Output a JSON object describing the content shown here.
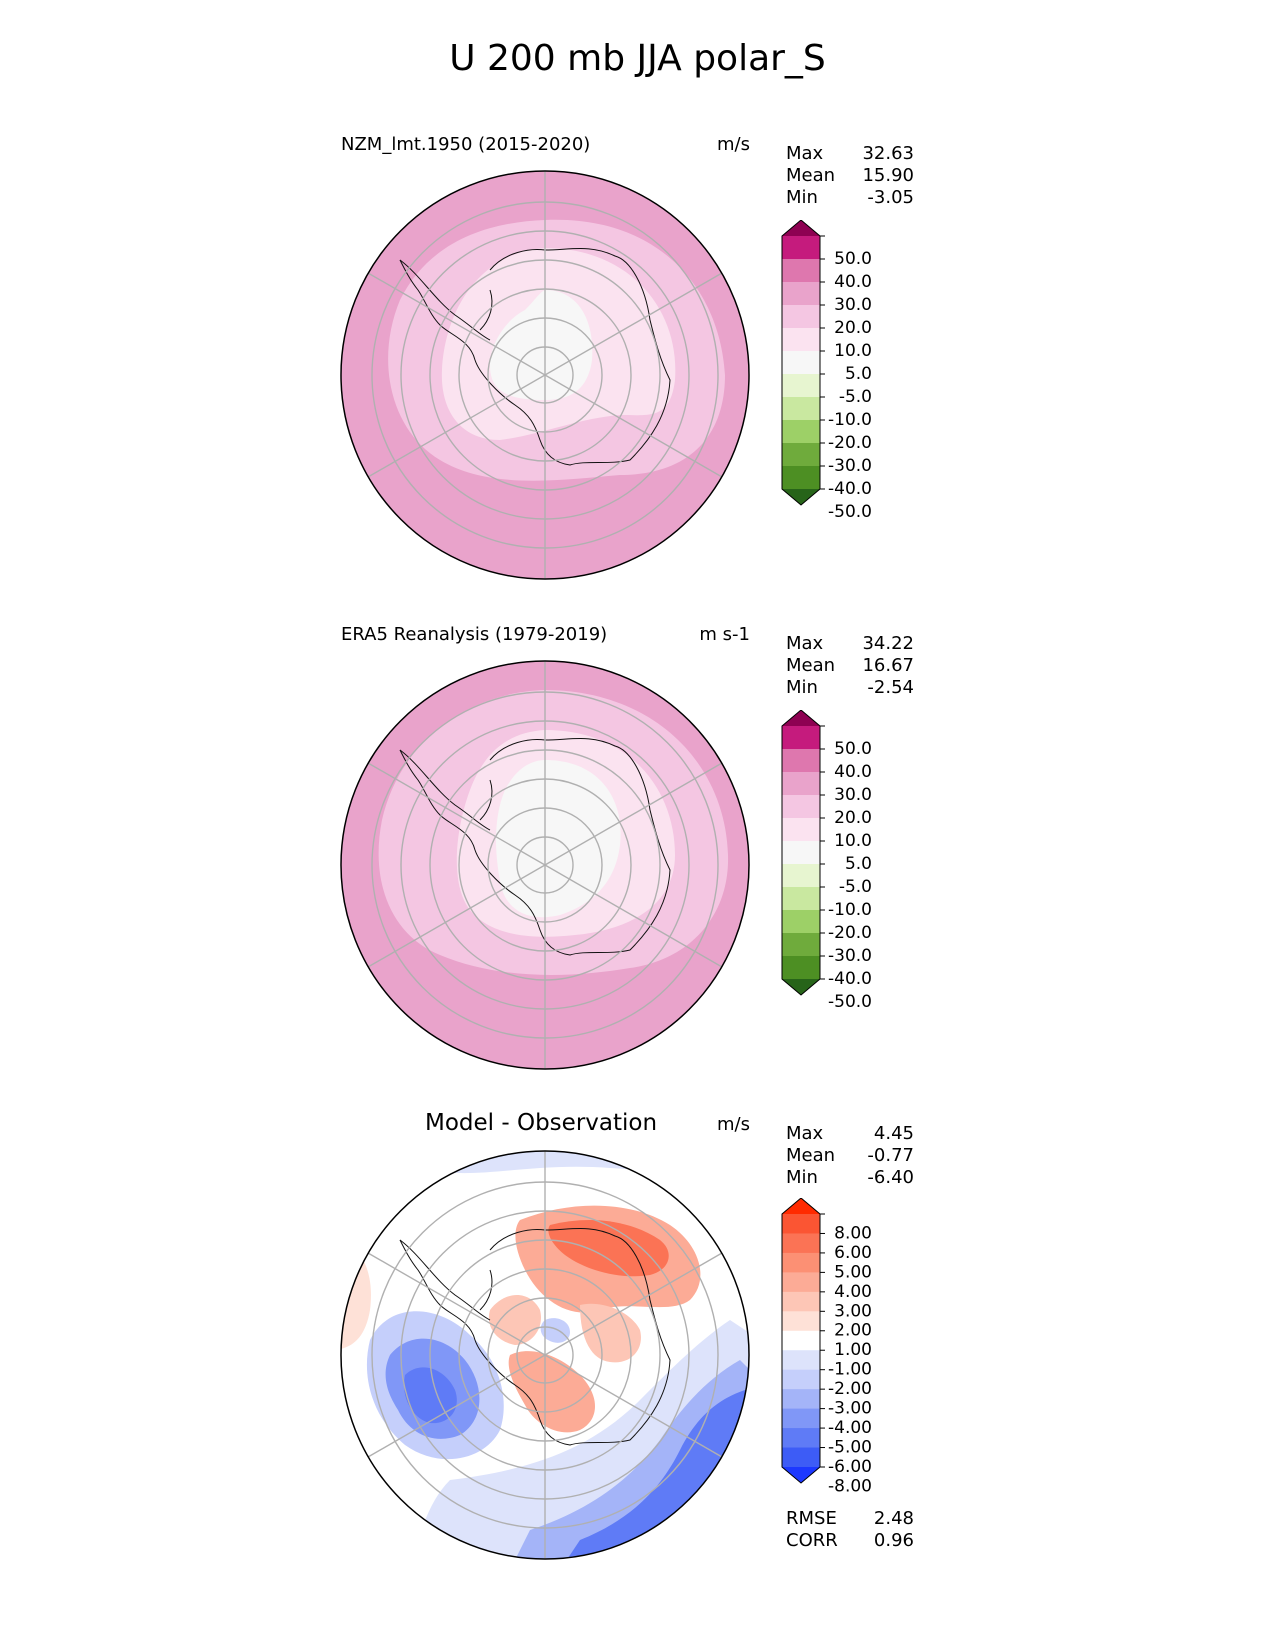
{
  "figure": {
    "title": "U 200 mb JJA polar_S"
  },
  "panels": [
    {
      "title": "NZM_lmt.1950 (2015-2020)",
      "units": "m/s",
      "stats": [
        {
          "label": "Max",
          "value": "32.63"
        },
        {
          "label": "Mean",
          "value": "15.90"
        },
        {
          "label": "Min",
          "value": "-3.05"
        }
      ]
    },
    {
      "title": "ERA5 Reanalysis (1979-2019)",
      "units": "m s-1",
      "stats": [
        {
          "label": "Max",
          "value": "34.22"
        },
        {
          "label": "Mean",
          "value": "16.67"
        },
        {
          "label": "Min",
          "value": "-2.54"
        }
      ]
    },
    {
      "title": "Model - Observation",
      "units": "m/s",
      "stats": [
        {
          "label": "Max",
          "value": "4.45"
        },
        {
          "label": "Mean",
          "value": "-0.77"
        },
        {
          "label": "Min",
          "value": "-6.40"
        }
      ],
      "extra_stats": [
        {
          "label": "RMSE",
          "value": "2.48"
        },
        {
          "label": "CORR",
          "value": "0.96"
        }
      ]
    }
  ],
  "colorbars": {
    "field": {
      "tick_labels": [
        "50.0",
        "40.0",
        "30.0",
        "20.0",
        "10.0",
        "5.0",
        "-5.0",
        "-10.0",
        "-20.0",
        "-30.0",
        "-40.0",
        "-50.0"
      ],
      "colors": [
        "#8e0152",
        "#c51b7d",
        "#de77ae",
        "#e9a3cb",
        "#f4c6e2",
        "#fbe3f0",
        "#f7f7f7",
        "#e7f5d0",
        "#c9e8a0",
        "#9dd067",
        "#6fab3c",
        "#4d8f23",
        "#276419"
      ]
    },
    "diff": {
      "tick_labels": [
        "8.00",
        "6.00",
        "5.00",
        "4.00",
        "3.00",
        "2.00",
        "1.00",
        "-1.00",
        "-2.00",
        "-3.00",
        "-4.00",
        "-5.00",
        "-6.00",
        "-8.00"
      ],
      "colors": [
        "#ff2a00",
        "#fb5533",
        "#fb7355",
        "#fc9074",
        "#fcab96",
        "#fdc6b6",
        "#fee1d7",
        "#ffffff",
        "#dde3fb",
        "#c5cffb",
        "#a4b4f8",
        "#8097f7",
        "#5f7bf6",
        "#3d5cf6",
        "#1c38ff"
      ]
    }
  },
  "chart_data": [
    {
      "type": "heatmap",
      "title": "NZM_lmt.1950 (2015-2020)",
      "projection": "south polar stereographic",
      "variable": "U 200 mb JJA",
      "units": "m/s",
      "levels": [
        -50,
        -40,
        -30,
        -20,
        -10,
        -5,
        5,
        10,
        20,
        30,
        40,
        50
      ],
      "stats": {
        "max": 32.63,
        "mean": 15.9,
        "min": -3.05
      }
    },
    {
      "type": "heatmap",
      "title": "ERA5 Reanalysis (1979-2019)",
      "projection": "south polar stereographic",
      "variable": "U 200 mb JJA",
      "units": "m s-1",
      "levels": [
        -50,
        -40,
        -30,
        -20,
        -10,
        -5,
        5,
        10,
        20,
        30,
        40,
        50
      ],
      "stats": {
        "max": 34.22,
        "mean": 16.67,
        "min": -2.54
      }
    },
    {
      "type": "heatmap",
      "title": "Model - Observation",
      "projection": "south polar stereographic",
      "units": "m/s",
      "levels": [
        -8,
        -6,
        -5,
        -4,
        -3,
        -2,
        -1,
        1,
        2,
        3,
        4,
        5,
        6,
        8
      ],
      "stats": {
        "max": 4.45,
        "mean": -0.77,
        "min": -6.4,
        "rmse": 2.48,
        "corr": 0.96
      }
    }
  ]
}
